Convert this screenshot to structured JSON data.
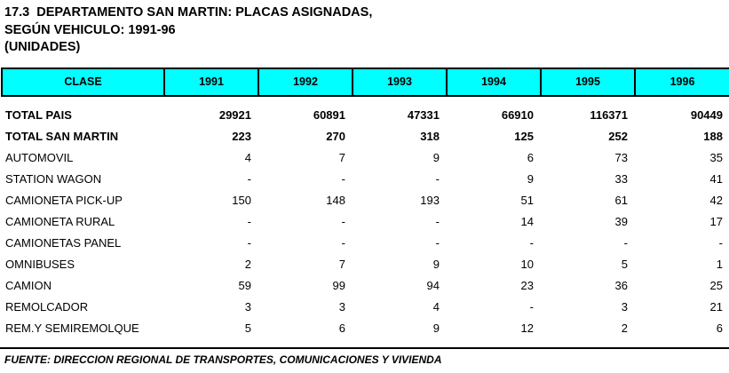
{
  "page": {
    "title_line1": "17.3  DEPARTAMENTO SAN MARTIN: PLACAS ASIGNADAS,",
    "title_line2": "SEGÚN VEHICULO: 1991-96",
    "title_line3": "(UNIDADES)"
  },
  "table": {
    "header": {
      "clase_label": "CLASE",
      "years": [
        "1991",
        "1992",
        "1993",
        "1994",
        "1995",
        "1996"
      ]
    },
    "rows": [
      {
        "label": "TOTAL PAIS",
        "bold": true,
        "values": [
          "29921",
          "60891",
          "47331",
          "66910",
          "116371",
          "90449"
        ]
      },
      {
        "label": "TOTAL SAN MARTIN",
        "bold": true,
        "values": [
          "223",
          "270",
          "318",
          "125",
          "252",
          "188"
        ]
      },
      {
        "label": "AUTOMOVIL",
        "bold": false,
        "values": [
          "4",
          "7",
          "9",
          "6",
          "73",
          "35"
        ]
      },
      {
        "label": "STATION WAGON",
        "bold": false,
        "values": [
          "-",
          "-",
          "-",
          "9",
          "33",
          "41"
        ]
      },
      {
        "label": "CAMIONETA PICK-UP",
        "bold": false,
        "values": [
          "150",
          "148",
          "193",
          "51",
          "61",
          "42"
        ]
      },
      {
        "label": "CAMIONETA RURAL",
        "bold": false,
        "values": [
          "-",
          "-",
          "-",
          "14",
          "39",
          "17"
        ]
      },
      {
        "label": "CAMIONETAS PANEL",
        "bold": false,
        "values": [
          "-",
          "-",
          "-",
          "-",
          "-",
          "-"
        ]
      },
      {
        "label": "OMNIBUSES",
        "bold": false,
        "values": [
          "2",
          "7",
          "9",
          "10",
          "5",
          "1"
        ]
      },
      {
        "label": "CAMION",
        "bold": false,
        "values": [
          "59",
          "99",
          "94",
          "23",
          "36",
          "25"
        ]
      },
      {
        "label": "REMOLCADOR",
        "bold": false,
        "values": [
          "3",
          "3",
          "4",
          "-",
          "3",
          "21"
        ]
      },
      {
        "label": "REM.Y SEMIREMOLQUE",
        "bold": false,
        "values": [
          "5",
          "6",
          "9",
          "12",
          "2",
          "6"
        ]
      }
    ]
  },
  "footer": {
    "source": "FUENTE: DIRECCION REGIONAL DE TRANSPORTES, COMUNICACIONES Y VIVIENDA"
  },
  "colors": {
    "header_bg": "#00FFFF",
    "border": "#000000",
    "text": "#000000",
    "page_bg": "#FFFFFF"
  }
}
